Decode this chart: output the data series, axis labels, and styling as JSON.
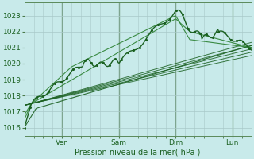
{
  "title": "Pression niveau de la mer( hPa )",
  "bg_color": "#c8eaea",
  "grid_color": "#a8c8c8",
  "line_color": "#1a6020",
  "line_color_light": "#2a8030",
  "yticks": [
    1016,
    1017,
    1018,
    1019,
    1020,
    1021,
    1022,
    1023
  ],
  "ylim": [
    1015.5,
    1023.8
  ],
  "xlim": [
    0,
    96
  ],
  "xtick_positions": [
    16,
    40,
    64,
    88
  ],
  "xtick_labels": [
    "Ven",
    "Sam",
    "Dim",
    "Lun"
  ],
  "vline_positions": [
    16,
    40,
    64,
    88
  ]
}
